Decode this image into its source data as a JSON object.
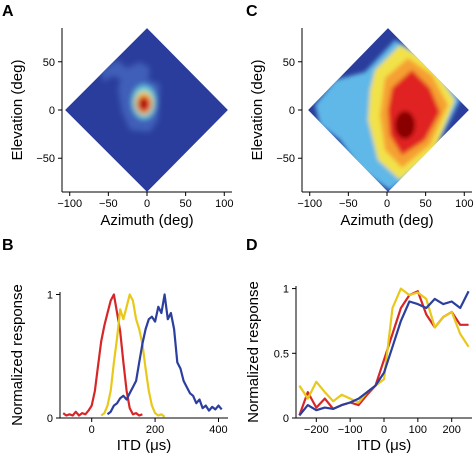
{
  "chart_data": [
    {
      "panel": "A",
      "type": "heatmap",
      "xlabel": "Azimuth (deg)",
      "ylabel": "Elevation (deg)",
      "xlim": [
        -110,
        110
      ],
      "ylim": [
        -85,
        85
      ],
      "xticks": [
        -100,
        -50,
        0,
        50,
        100
      ],
      "yticks": [
        50,
        0,
        -50
      ],
      "xtick_labels": [
        "−100",
        "−50",
        "0",
        "50",
        "100"
      ],
      "ytick_labels": [
        "50",
        "0",
        "−50"
      ],
      "colors": {
        "background": "#2a3d9c",
        "low": "#4a6fc8",
        "mid": "#5fc8e0",
        "hot": "#e02020",
        "peak": "#a00000"
      }
    },
    {
      "panel": "C",
      "type": "heatmap",
      "xlabel": "Azimuth (deg)",
      "ylabel": "Elevation (deg)",
      "xlim": [
        -110,
        110
      ],
      "ylim": [
        -85,
        85
      ],
      "xticks": [
        -100,
        -50,
        0,
        50,
        100
      ],
      "yticks": [
        50,
        0,
        -50
      ],
      "xtick_labels": [
        "−100",
        "−50",
        "0",
        "50",
        "100"
      ],
      "ytick_labels": [
        "50",
        "0",
        "−50"
      ],
      "colors": {
        "background": "#2a3d9c",
        "cool": "#5fb8e8",
        "warm": "#f2e24a",
        "orange": "#f5a030",
        "hot": "#e02020",
        "peak": "#8a0000"
      }
    },
    {
      "panel": "B",
      "type": "line",
      "xlabel": "ITD (μs)",
      "ylabel": "Normalized response",
      "xlim": [
        -100,
        430
      ],
      "ylim": [
        0,
        1.02
      ],
      "xticks": [
        0,
        200,
        400
      ],
      "yticks": [
        0,
        1
      ],
      "xtick_labels": [
        "0",
        "200",
        "400"
      ],
      "ytick_labels": [
        "0",
        "1"
      ],
      "series": [
        {
          "color": "#d62728",
          "x": [
            -90,
            -80,
            -70,
            -60,
            -50,
            -40,
            -30,
            -20,
            -10,
            0,
            10,
            20,
            30,
            40,
            50,
            60,
            70,
            80,
            90,
            100,
            110,
            120,
            130,
            140,
            150,
            160
          ],
          "y": [
            0.04,
            0.02,
            0.03,
            0.02,
            0.05,
            0.02,
            0.04,
            0.03,
            0.06,
            0.1,
            0.22,
            0.42,
            0.62,
            0.75,
            0.85,
            0.95,
            1.0,
            0.85,
            0.7,
            0.45,
            0.22,
            0.08,
            0.03,
            0.04,
            0.02,
            0.03
          ]
        },
        {
          "color": "#e8c81a",
          "x": [
            30,
            40,
            50,
            60,
            70,
            80,
            90,
            100,
            110,
            120,
            130,
            140,
            150,
            160,
            170,
            180,
            190,
            200,
            210,
            220,
            230
          ],
          "y": [
            0.02,
            0.04,
            0.1,
            0.22,
            0.45,
            0.65,
            0.88,
            0.8,
            0.9,
            1.0,
            0.95,
            0.8,
            0.72,
            0.6,
            0.4,
            0.22,
            0.1,
            0.04,
            0.02,
            0.03,
            0.01
          ]
        },
        {
          "color": "#2b3f9e",
          "x": [
            50,
            60,
            70,
            80,
            90,
            100,
            110,
            120,
            130,
            140,
            150,
            160,
            170,
            180,
            190,
            200,
            210,
            220,
            230,
            240,
            250,
            260,
            270,
            280,
            290,
            300,
            310,
            320,
            330,
            340,
            350,
            360,
            370,
            380,
            390,
            400,
            410
          ],
          "y": [
            0.03,
            0.05,
            0.1,
            0.12,
            0.16,
            0.18,
            0.15,
            0.2,
            0.25,
            0.3,
            0.45,
            0.6,
            0.72,
            0.8,
            0.82,
            0.78,
            0.9,
            0.85,
            1.0,
            0.8,
            0.85,
            0.72,
            0.45,
            0.4,
            0.3,
            0.25,
            0.2,
            0.18,
            0.12,
            0.15,
            0.08,
            0.1,
            0.06,
            0.09,
            0.07,
            0.1,
            0.07
          ]
        }
      ]
    },
    {
      "panel": "D",
      "type": "line",
      "xlabel": "ITD (μs)",
      "ylabel": "Normalized response",
      "xlim": [
        -260,
        260
      ],
      "ylim": [
        0,
        1.02
      ],
      "xticks": [
        -200,
        -100,
        0,
        100,
        200
      ],
      "yticks": [
        0,
        0.5,
        1
      ],
      "xtick_labels": [
        "−200",
        "−100",
        "0",
        "100",
        "200"
      ],
      "ytick_labels": [
        "0",
        "0.5",
        "1"
      ],
      "series": [
        {
          "color": "#d62728",
          "x": [
            -250,
            -225,
            -200,
            -175,
            -150,
            -125,
            -100,
            -75,
            -50,
            -25,
            0,
            25,
            50,
            75,
            100,
            125,
            150,
            175,
            200,
            225,
            250
          ],
          "y": [
            0.02,
            0.2,
            0.08,
            0.15,
            0.07,
            0.1,
            0.12,
            0.1,
            0.18,
            0.25,
            0.45,
            0.65,
            0.85,
            0.95,
            0.98,
            0.8,
            0.7,
            0.78,
            0.82,
            0.72,
            0.72
          ]
        },
        {
          "color": "#e8c81a",
          "x": [
            -250,
            -225,
            -200,
            -175,
            -150,
            -125,
            -100,
            -75,
            -50,
            -25,
            0,
            25,
            50,
            75,
            100,
            125,
            150,
            175,
            200,
            225,
            250
          ],
          "y": [
            0.25,
            0.15,
            0.28,
            0.2,
            0.13,
            0.18,
            0.15,
            0.12,
            0.2,
            0.25,
            0.3,
            0.85,
            1.0,
            0.95,
            0.97,
            0.92,
            0.7,
            0.78,
            0.82,
            0.65,
            0.55
          ]
        },
        {
          "color": "#2b3f9e",
          "x": [
            -250,
            -225,
            -200,
            -175,
            -150,
            -125,
            -100,
            -75,
            -50,
            -25,
            0,
            25,
            50,
            75,
            100,
            125,
            150,
            175,
            200,
            225,
            250
          ],
          "y": [
            0.02,
            0.1,
            0.06,
            0.08,
            0.07,
            0.1,
            0.12,
            0.15,
            0.2,
            0.25,
            0.35,
            0.55,
            0.75,
            0.9,
            0.88,
            0.85,
            0.92,
            0.88,
            0.9,
            0.85,
            0.98
          ]
        }
      ]
    }
  ],
  "panel_letters": [
    "A",
    "C",
    "B",
    "D"
  ]
}
